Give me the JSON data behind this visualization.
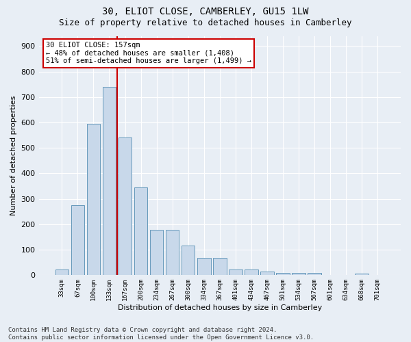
{
  "title_line1": "30, ELIOT CLOSE, CAMBERLEY, GU15 1LW",
  "title_line2": "Size of property relative to detached houses in Camberley",
  "xlabel": "Distribution of detached houses by size in Camberley",
  "ylabel": "Number of detached properties",
  "bar_color": "#c8d8ea",
  "bar_edge_color": "#6699bb",
  "bg_color": "#e8eef5",
  "grid_color": "#ffffff",
  "categories": [
    "33sqm",
    "67sqm",
    "100sqm",
    "133sqm",
    "167sqm",
    "200sqm",
    "234sqm",
    "267sqm",
    "300sqm",
    "334sqm",
    "367sqm",
    "401sqm",
    "434sqm",
    "467sqm",
    "501sqm",
    "534sqm",
    "567sqm",
    "601sqm",
    "634sqm",
    "668sqm",
    "701sqm"
  ],
  "values": [
    22,
    275,
    595,
    740,
    540,
    345,
    178,
    178,
    117,
    67,
    67,
    22,
    22,
    13,
    8,
    8,
    8,
    0,
    0,
    5,
    0
  ],
  "ylim": [
    0,
    940
  ],
  "yticks": [
    0,
    100,
    200,
    300,
    400,
    500,
    600,
    700,
    800,
    900
  ],
  "vline_color": "#cc0000",
  "annotation_text": "30 ELIOT CLOSE: 157sqm\n← 48% of detached houses are smaller (1,408)\n51% of semi-detached houses are larger (1,499) →",
  "annotation_box_color": "#cc0000",
  "annotation_fill": "#ffffff",
  "footer_text": "Contains HM Land Registry data © Crown copyright and database right 2024.\nContains public sector information licensed under the Open Government Licence v3.0.",
  "title_fontsize": 10,
  "subtitle_fontsize": 9,
  "annot_fontsize": 7.5,
  "footer_fontsize": 6.5,
  "xlabel_fontsize": 8,
  "ylabel_fontsize": 8
}
